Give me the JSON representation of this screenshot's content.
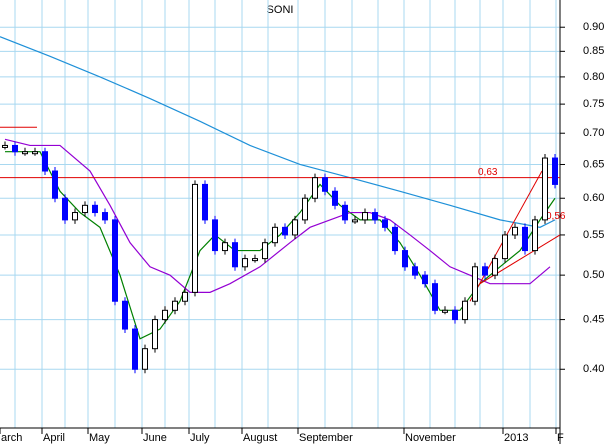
{
  "chart_data": {
    "type": "stock",
    "title": "SONI",
    "log_scale": true,
    "grid": true,
    "grid_color": "#a8d8f0",
    "xlim": [
      0,
      56
    ],
    "ylim": [
      0.348,
      0.96
    ],
    "yticks": [
      {
        "value": 0.4,
        "label": "0.40"
      },
      0.45,
      {
        "value": 0.5,
        "label": "0.50"
      },
      0.55,
      {
        "value": 0.6,
        "label": "0.60"
      },
      0.65,
      {
        "value": 0.7,
        "label": "0.70"
      },
      0.75,
      {
        "value": 0.8,
        "label": "0.80"
      },
      0.85,
      {
        "value": 0.9,
        "label": "0.90"
      }
    ],
    "xticks": [
      {
        "value": 0,
        "label": "arch"
      },
      {
        "value": 4.2,
        "label": "April"
      },
      {
        "value": 8.8,
        "label": "May"
      },
      {
        "value": 14.2,
        "label": "June"
      },
      {
        "value": 18.9,
        "label": "July"
      },
      {
        "value": 24.2,
        "label": "August"
      },
      {
        "value": 29.8,
        "label": "September"
      },
      {
        "value": 40.4,
        "label": "November"
      },
      {
        "value": 50.3,
        "label": "2013"
      },
      {
        "value": 55.6,
        "label": "F"
      }
    ],
    "xgrid": [
      1.5,
      4.2,
      6.5,
      8.8,
      11.5,
      14.2,
      16.5,
      18.9,
      21.5,
      24.2,
      26.8,
      29.8,
      32.5,
      35.2,
      37.8,
      40.4,
      43,
      45.5,
      48,
      50.3,
      53,
      55.6
    ],
    "price": {
      "up_color": "#000000",
      "down_color": "#0000ff",
      "x": [
        0.5,
        1.5,
        2.5,
        3.5,
        4.5,
        5.5,
        6.5,
        7.5,
        8.5,
        9.5,
        10.5,
        11.5,
        12.5,
        13.5,
        14.5,
        15.5,
        16.5,
        17.5,
        18.5,
        19.5,
        20.5,
        21.5,
        22.5,
        23.5,
        24.5,
        25.5,
        26.5,
        27.5,
        28.5,
        29.5,
        30.5,
        31.5,
        32.5,
        33.5,
        34.5,
        35.5,
        36.5,
        37.5,
        38.5,
        39.5,
        40.5,
        41.5,
        42.5,
        43.5,
        44.5,
        45.5,
        46.5,
        47.5,
        48.5,
        49.5,
        50.5,
        51.5,
        52.5,
        53.5,
        54.5,
        55.5
      ],
      "values": [
        0.68,
        0.67,
        0.67,
        0.67,
        0.64,
        0.6,
        0.57,
        0.58,
        0.59,
        0.58,
        0.57,
        0.47,
        0.44,
        0.4,
        0.42,
        0.45,
        0.46,
        0.47,
        0.48,
        0.62,
        0.57,
        0.53,
        0.54,
        0.51,
        0.52,
        0.52,
        0.54,
        0.56,
        0.55,
        0.57,
        0.6,
        0.63,
        0.61,
        0.59,
        0.57,
        0.57,
        0.58,
        0.57,
        0.56,
        0.53,
        0.51,
        0.5,
        0.49,
        0.46,
        0.46,
        0.45,
        0.47,
        0.51,
        0.5,
        0.52,
        0.55,
        0.56,
        0.53,
        0.57,
        0.66,
        0.62
      ]
    },
    "series": [
      {
        "color": "#1e90d8",
        "x": [
          0,
          5,
          10,
          15,
          20,
          25,
          30,
          35,
          40,
          45,
          50,
          54,
          55.5
        ],
        "values": [
          0.88,
          0.84,
          0.8,
          0.76,
          0.72,
          0.68,
          0.65,
          0.63,
          0.61,
          0.59,
          0.57,
          0.56,
          0.57
        ]
      },
      {
        "color": "#008000",
        "x": [
          0.5,
          4,
          6,
          8,
          10,
          12,
          14,
          16,
          18,
          20,
          21.5,
          23.5,
          26,
          28,
          30,
          32,
          34,
          36,
          38,
          40,
          42,
          44,
          46,
          48,
          50,
          52,
          54,
          55.5
        ],
        "values": [
          0.67,
          0.67,
          0.61,
          0.58,
          0.56,
          0.5,
          0.43,
          0.44,
          0.47,
          0.53,
          0.55,
          0.53,
          0.53,
          0.55,
          0.58,
          0.62,
          0.59,
          0.57,
          0.57,
          0.54,
          0.5,
          0.46,
          0.46,
          0.49,
          0.51,
          0.53,
          0.57,
          0.6
        ]
      },
      {
        "color": "#9400d3",
        "x": [
          0.5,
          3,
          6,
          9,
          11,
          13,
          15,
          17,
          19,
          21,
          23,
          26,
          29,
          31,
          33,
          35,
          37,
          39,
          41,
          43,
          45,
          47,
          49,
          51,
          53,
          55
        ],
        "values": [
          0.69,
          0.68,
          0.68,
          0.64,
          0.59,
          0.54,
          0.51,
          0.5,
          0.48,
          0.48,
          0.49,
          0.51,
          0.54,
          0.56,
          0.57,
          0.58,
          0.58,
          0.57,
          0.55,
          0.53,
          0.51,
          0.5,
          0.49,
          0.49,
          0.49,
          0.51
        ]
      }
    ],
    "lines": [
      {
        "color": "#e00000",
        "x": [
          0,
          56
        ],
        "y": [
          0.63,
          0.63
        ],
        "label": "0,63",
        "label_x": 47.8,
        "label_y": 0.638
      },
      {
        "color": "#e00000",
        "x": [
          0,
          3.7
        ],
        "y": [
          0.71,
          0.71
        ]
      },
      {
        "color": "#e00000",
        "x": [
          47,
          54.2
        ],
        "y": [
          0.47,
          0.64
        ]
      },
      {
        "color": "#e00000",
        "x": [
          48,
          56
        ],
        "y": [
          0.49,
          0.55
        ],
        "label": "0,56",
        "label_x": 54.6,
        "label_y": 0.575
      }
    ]
  }
}
